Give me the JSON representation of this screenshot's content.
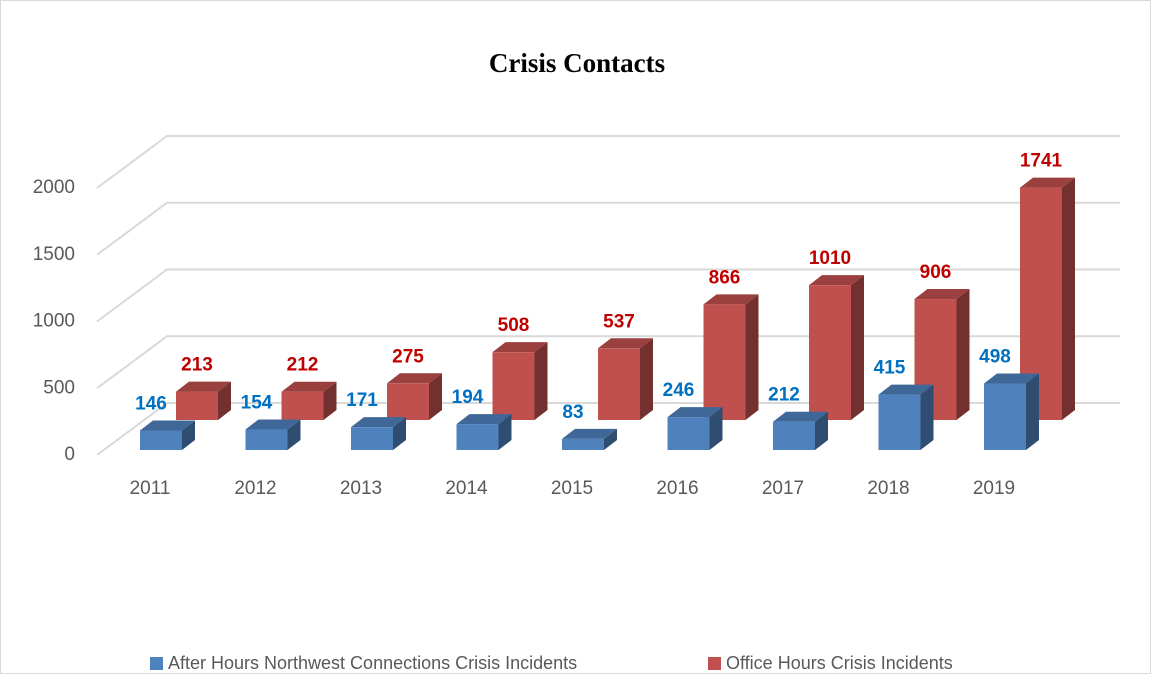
{
  "chart_data": {
    "type": "bar3d",
    "title": "Crisis Contacts",
    "categories": [
      "2011",
      "2012",
      "2013",
      "2014",
      "2015",
      "2016",
      "2017",
      "2018",
      "2019"
    ],
    "series": [
      {
        "name": "After Hours Northwest Connections Crisis Incidents",
        "color": "#4f81bd",
        "label_color": "#0070c0",
        "values": [
          146,
          154,
          171,
          194,
          83,
          246,
          212,
          415,
          498
        ]
      },
      {
        "name": "Office Hours Crisis Incidents",
        "color": "#c0504d",
        "label_color": "#c00000",
        "values": [
          213,
          212,
          275,
          508,
          537,
          866,
          1010,
          906,
          1741
        ]
      }
    ],
    "ylim": [
      0,
      2000
    ],
    "yticks": [
      0,
      500,
      1000,
      1500,
      2000
    ],
    "grid": true,
    "legend": "bottom"
  }
}
